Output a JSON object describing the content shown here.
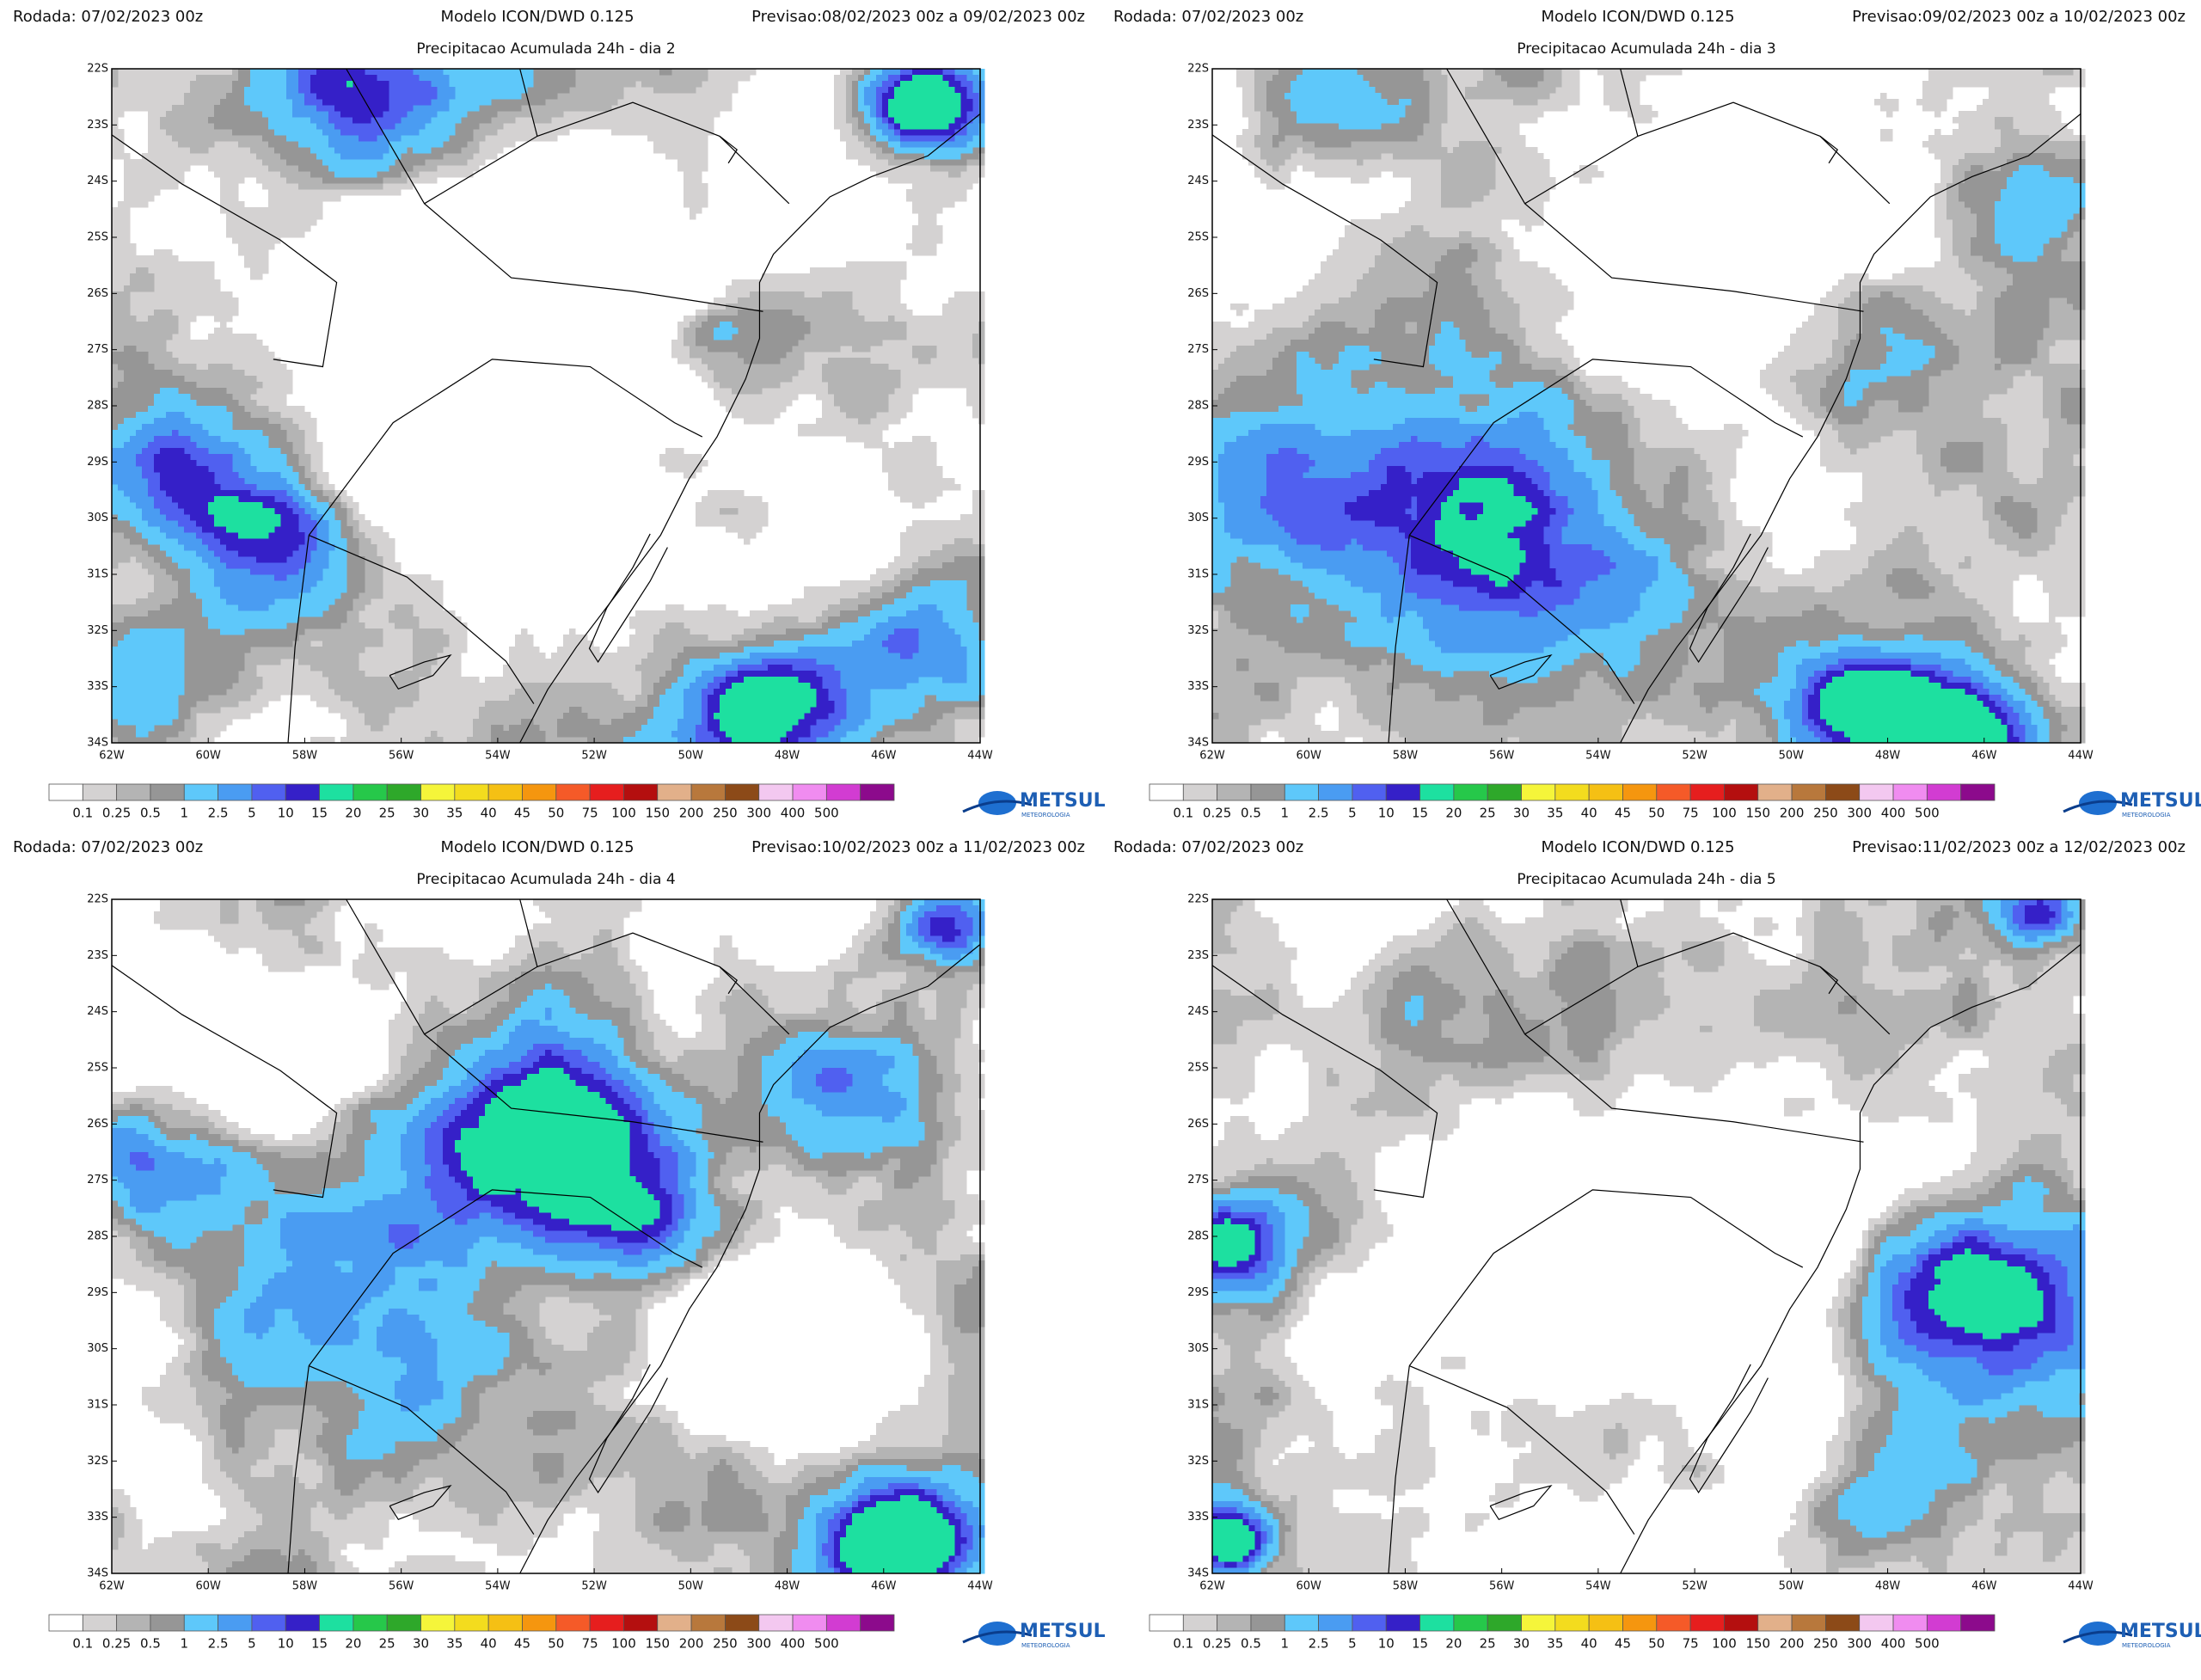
{
  "panels": [
    {
      "run": "Rodada: 07/02/2023 00z",
      "model": "Modelo ICON/DWD 0.125",
      "forecast": "Previsao:08/02/2023 00z a 09/02/2023 00z",
      "title": "Precipitacao Acumulada 24h - dia 2"
    },
    {
      "run": "Rodada: 07/02/2023 00z",
      "model": "Modelo ICON/DWD 0.125",
      "forecast": "Previsao:09/02/2023 00z a 10/02/2023 00z",
      "title": "Precipitacao Acumulada 24h - dia 3"
    },
    {
      "run": "Rodada: 07/02/2023 00z",
      "model": "Modelo ICON/DWD 0.125",
      "forecast": "Previsao:10/02/2023 00z a 11/02/2023 00z",
      "title": "Precipitacao Acumulada 24h - dia 4"
    },
    {
      "run": "Rodada: 07/02/2023 00z",
      "model": "Modelo ICON/DWD 0.125",
      "forecast": "Previsao:11/02/2023 00z a 12/02/2023 00z",
      "title": "Precipitacao Acumulada 24h - dia 5"
    }
  ],
  "map_axes": {
    "lat_labels": [
      "22S",
      "23S",
      "24S",
      "25S",
      "26S",
      "27S",
      "28S",
      "29S",
      "30S",
      "31S",
      "32S",
      "33S",
      "34S"
    ],
    "lon_labels": [
      "62W",
      "60W",
      "58W",
      "56W",
      "54W",
      "52W",
      "50W",
      "48W",
      "46W",
      "44W"
    ]
  },
  "colorbar": {
    "labels": [
      0.1,
      0.25,
      0.5,
      1,
      2.5,
      5,
      10,
      15,
      20,
      25,
      30,
      35,
      40,
      45,
      50,
      75,
      100,
      150,
      200,
      250,
      300,
      400,
      500
    ],
    "colors": [
      "#ffffff",
      "#d4d2d2",
      "#b4b4b4",
      "#969696",
      "#5ec8fa",
      "#4a9cf2",
      "#5060f0",
      "#3520c8",
      "#1de0a0",
      "#26c84a",
      "#2ea82a",
      "#f5f53a",
      "#f3dc1e",
      "#f5c014",
      "#f5960f",
      "#f55a28",
      "#e61e1e",
      "#b40f0f",
      "#e2b08a",
      "#b8783c",
      "#8c4a18",
      "#f3c8f0",
      "#f08cf0",
      "#d23cd2",
      "#8c0a8c"
    ]
  },
  "logo": {
    "name": "METSUL",
    "tagline": "METEOROLOGIA"
  }
}
